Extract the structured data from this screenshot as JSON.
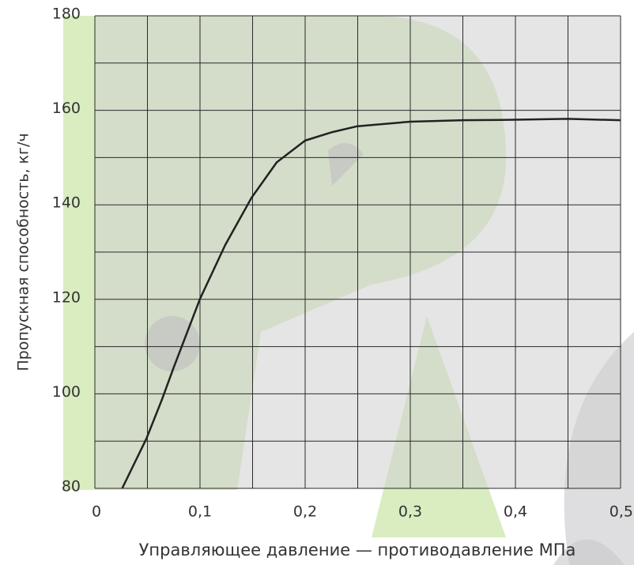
{
  "chart_data": {
    "type": "line",
    "x_label": "Управляющее давление — противодавление МПа",
    "y_label": "Пропускная способность, кг/ч",
    "series": [
      {
        "color": "#222222",
        "x": [
          0.026,
          0.049,
          0.064,
          0.075,
          0.1,
          0.124,
          0.149,
          0.173,
          0.2,
          0.226,
          0.249,
          0.3,
          0.35,
          0.4,
          0.45,
          0.5
        ],
        "values": [
          80,
          90.5,
          98.9,
          105.6,
          120.1,
          131.5,
          141.5,
          149,
          153.6,
          155.4,
          156.6,
          157.6,
          157.9,
          158,
          158.2,
          157.9
        ]
      }
    ],
    "xlim": [
      0,
      0.5
    ],
    "xticks": [
      0,
      {
        "value": 0.1,
        "label": "0,1"
      },
      {
        "value": 0.2,
        "label": "0,2"
      },
      {
        "value": 0.3,
        "label": "0,3"
      },
      {
        "value": 0.4,
        "label": "0,4"
      },
      {
        "value": 0.5,
        "label": "0,5"
      }
    ],
    "ylim": [
      80,
      180
    ],
    "yticks": [
      80,
      100,
      120,
      140,
      160,
      180
    ],
    "xgrid": [
      0,
      0.05,
      0.1,
      0.15,
      0.2,
      0.25,
      0.3,
      0.35,
      0.4,
      0.45,
      0.5
    ],
    "ygrid": [
      80,
      90,
      100,
      110,
      120,
      130,
      140,
      150,
      160,
      170,
      180
    ],
    "grid": true
  }
}
